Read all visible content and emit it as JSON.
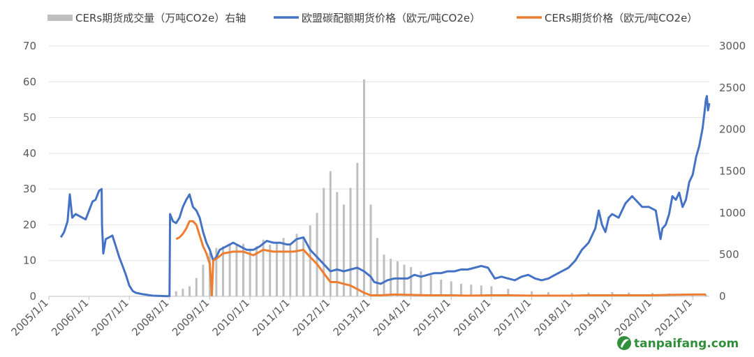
{
  "chart_data": {
    "type": "line",
    "x_is_time": true,
    "x_range": [
      "2005/1/1",
      "2021/6/1"
    ],
    "x_ticks": [
      "2005/1/1",
      "2006/1/1",
      "2007/1/1",
      "2008/1/1",
      "2009/1/1",
      "2010/1/1",
      "2011/1/1",
      "2012/1/1",
      "2013/1/1",
      "2014/1/1",
      "2015/1/1",
      "2016/1/1",
      "2017/1/1",
      "2018/1/1",
      "2019/1/1",
      "2020/1/1",
      "2021/1/1"
    ],
    "y_left": {
      "range": [
        0,
        70
      ],
      "ticks": [
        0,
        10,
        20,
        30,
        40,
        50,
        60,
        70
      ]
    },
    "y_right": {
      "range": [
        0,
        3000
      ],
      "ticks": [
        0,
        500,
        1000,
        1500,
        2000,
        2500,
        3000
      ]
    },
    "grid": "horizontal",
    "legend_position": "top",
    "series": [
      {
        "name": "CERs期货成交量（万吨CO2e）右轴",
        "kind": "bar",
        "axis": "right",
        "color": "#bfbfbf",
        "points": [
          [
            "2008/3/1",
            60
          ],
          [
            "2008/5/1",
            90
          ],
          [
            "2008/7/1",
            120
          ],
          [
            "2008/9/1",
            220
          ],
          [
            "2008/11/1",
            380
          ],
          [
            "2009/1/1",
            520
          ],
          [
            "2009/3/1",
            580
          ],
          [
            "2009/5/1",
            600
          ],
          [
            "2009/7/1",
            620
          ],
          [
            "2009/9/1",
            610
          ],
          [
            "2009/11/1",
            630
          ],
          [
            "2010/1/1",
            560
          ],
          [
            "2010/3/1",
            600
          ],
          [
            "2010/5/1",
            680
          ],
          [
            "2010/7/1",
            620
          ],
          [
            "2010/9/1",
            640
          ],
          [
            "2010/11/1",
            700
          ],
          [
            "2011/1/1",
            620
          ],
          [
            "2011/3/1",
            750
          ],
          [
            "2011/5/1",
            700
          ],
          [
            "2011/7/1",
            850
          ],
          [
            "2011/9/1",
            1000
          ],
          [
            "2011/11/1",
            1300
          ],
          [
            "2012/1/1",
            1500
          ],
          [
            "2012/3/1",
            1250
          ],
          [
            "2012/5/1",
            1100
          ],
          [
            "2012/7/1",
            1300
          ],
          [
            "2012/9/1",
            1600
          ],
          [
            "2012/11/1",
            2600
          ],
          [
            "2013/1/1",
            1100
          ],
          [
            "2013/3/1",
            700
          ],
          [
            "2013/5/1",
            500
          ],
          [
            "2013/7/1",
            450
          ],
          [
            "2013/9/1",
            420
          ],
          [
            "2013/11/1",
            380
          ],
          [
            "2014/1/1",
            350
          ],
          [
            "2014/4/1",
            300
          ],
          [
            "2014/7/1",
            250
          ],
          [
            "2014/10/1",
            200
          ],
          [
            "2015/1/1",
            180
          ],
          [
            "2015/4/1",
            150
          ],
          [
            "2015/7/1",
            140
          ],
          [
            "2015/10/1",
            130
          ],
          [
            "2016/1/1",
            120
          ],
          [
            "2016/6/1",
            90
          ],
          [
            "2017/1/1",
            60
          ],
          [
            "2017/6/1",
            50
          ],
          [
            "2018/1/1",
            40
          ],
          [
            "2018/6/1",
            45
          ],
          [
            "2019/1/1",
            50
          ],
          [
            "2019/6/1",
            45
          ],
          [
            "2020/1/1",
            40
          ],
          [
            "2020/6/1",
            35
          ],
          [
            "2021/1/1",
            30
          ],
          [
            "2021/5/1",
            25
          ]
        ]
      },
      {
        "name": "欧盟碳配额期货价格（欧元/吨CO2e）",
        "kind": "line",
        "axis": "left",
        "color": "#4472c4",
        "points": [
          [
            "2005/4/20",
            16.5
          ],
          [
            "2005/5/20",
            18
          ],
          [
            "2005/6/20",
            21
          ],
          [
            "2005/7/10",
            28.5
          ],
          [
            "2005/8/1",
            22
          ],
          [
            "2005/9/1",
            23
          ],
          [
            "2005/10/1",
            22.5
          ],
          [
            "2005/11/1",
            22
          ],
          [
            "2005/12/1",
            21.5
          ],
          [
            "2006/1/1",
            24
          ],
          [
            "2006/2/1",
            26.5
          ],
          [
            "2006/3/1",
            27
          ],
          [
            "2006/4/1",
            29.5
          ],
          [
            "2006/4/25",
            30
          ],
          [
            "2006/4/28",
            20
          ],
          [
            "2006/5/10",
            12
          ],
          [
            "2006/6/1",
            16
          ],
          [
            "2006/7/1",
            16.5
          ],
          [
            "2006/8/1",
            17
          ],
          [
            "2006/9/1",
            14
          ],
          [
            "2006/10/1",
            11
          ],
          [
            "2006/11/1",
            8.5
          ],
          [
            "2006/12/1",
            6
          ],
          [
            "2007/1/1",
            3
          ],
          [
            "2007/2/1",
            1.5
          ],
          [
            "2007/3/1",
            1
          ],
          [
            "2007/5/1",
            0.6
          ],
          [
            "2007/8/1",
            0.2
          ],
          [
            "2007/12/1",
            0.05
          ],
          [
            "2008/1/1",
            0.03
          ],
          [
            "2008/1/6",
            23
          ],
          [
            "2008/2/1",
            21
          ],
          [
            "2008/3/1",
            20.5
          ],
          [
            "2008/4/1",
            22
          ],
          [
            "2008/5/1",
            25
          ],
          [
            "2008/6/1",
            27
          ],
          [
            "2008/7/1",
            28.5
          ],
          [
            "2008/8/1",
            25
          ],
          [
            "2008/9/1",
            24
          ],
          [
            "2008/10/1",
            22
          ],
          [
            "2008/11/1",
            18
          ],
          [
            "2008/12/1",
            15
          ],
          [
            "2009/1/1",
            13
          ],
          [
            "2009/2/1",
            10
          ],
          [
            "2009/3/1",
            11
          ],
          [
            "2009/4/1",
            13
          ],
          [
            "2009/6/1",
            14
          ],
          [
            "2009/8/1",
            15
          ],
          [
            "2009/10/1",
            14
          ],
          [
            "2009/12/1",
            13
          ],
          [
            "2010/2/1",
            13
          ],
          [
            "2010/4/1",
            14
          ],
          [
            "2010/6/1",
            15.5
          ],
          [
            "2010/8/1",
            15
          ],
          [
            "2010/10/1",
            15
          ],
          [
            "2010/12/1",
            14.5
          ],
          [
            "2011/1/1",
            14.5
          ],
          [
            "2011/3/1",
            16
          ],
          [
            "2011/5/1",
            16.5
          ],
          [
            "2011/7/1",
            13
          ],
          [
            "2011/9/1",
            11
          ],
          [
            "2011/11/1",
            9
          ],
          [
            "2012/1/1",
            7
          ],
          [
            "2012/3/1",
            7.5
          ],
          [
            "2012/5/1",
            7
          ],
          [
            "2012/7/1",
            7.5
          ],
          [
            "2012/9/1",
            8
          ],
          [
            "2012/11/1",
            7
          ],
          [
            "2013/1/1",
            5.5
          ],
          [
            "2013/2/1",
            4
          ],
          [
            "2013/4/1",
            3.5
          ],
          [
            "2013/6/1",
            4.5
          ],
          [
            "2013/8/1",
            5
          ],
          [
            "2013/10/1",
            5
          ],
          [
            "2013/12/1",
            5
          ],
          [
            "2014/2/1",
            6
          ],
          [
            "2014/4/1",
            5.5
          ],
          [
            "2014/6/1",
            6
          ],
          [
            "2014/8/1",
            6.5
          ],
          [
            "2014/10/1",
            6.5
          ],
          [
            "2014/12/1",
            7
          ],
          [
            "2015/2/1",
            7
          ],
          [
            "2015/4/1",
            7.5
          ],
          [
            "2015/6/1",
            7.5
          ],
          [
            "2015/8/1",
            8
          ],
          [
            "2015/10/1",
            8.5
          ],
          [
            "2015/12/1",
            8
          ],
          [
            "2016/1/1",
            6.5
          ],
          [
            "2016/2/1",
            5
          ],
          [
            "2016/4/1",
            5.5
          ],
          [
            "2016/6/1",
            5
          ],
          [
            "2016/8/1",
            4.5
          ],
          [
            "2016/10/1",
            5.5
          ],
          [
            "2016/12/1",
            6
          ],
          [
            "2017/2/1",
            5
          ],
          [
            "2017/4/1",
            4.5
          ],
          [
            "2017/6/1",
            5
          ],
          [
            "2017/8/1",
            6
          ],
          [
            "2017/10/1",
            7
          ],
          [
            "2017/12/1",
            8
          ],
          [
            "2018/2/1",
            10
          ],
          [
            "2018/4/1",
            13
          ],
          [
            "2018/6/1",
            15
          ],
          [
            "2018/8/1",
            19
          ],
          [
            "2018/9/1",
            24
          ],
          [
            "2018/10/1",
            20
          ],
          [
            "2018/11/1",
            18
          ],
          [
            "2018/12/1",
            22
          ],
          [
            "2019/1/1",
            23
          ],
          [
            "2019/3/1",
            22
          ],
          [
            "2019/5/1",
            26
          ],
          [
            "2019/7/1",
            28
          ],
          [
            "2019/8/1",
            27
          ],
          [
            "2019/10/1",
            25
          ],
          [
            "2019/12/1",
            25
          ],
          [
            "2020/2/1",
            24
          ],
          [
            "2020/3/15",
            16
          ],
          [
            "2020/4/1",
            19
          ],
          [
            "2020/5/1",
            20
          ],
          [
            "2020/6/1",
            23
          ],
          [
            "2020/7/1",
            28
          ],
          [
            "2020/8/1",
            27
          ],
          [
            "2020/9/1",
            29
          ],
          [
            "2020/10/1",
            25
          ],
          [
            "2020/11/1",
            27
          ],
          [
            "2020/12/1",
            32
          ],
          [
            "2021/1/1",
            34
          ],
          [
            "2021/2/1",
            39
          ],
          [
            "2021/3/1",
            42
          ],
          [
            "2021/4/1",
            47
          ],
          [
            "2021/4/20",
            52
          ],
          [
            "2021/5/1",
            55
          ],
          [
            "2021/5/10",
            56
          ],
          [
            "2021/5/20",
            52
          ],
          [
            "2021/6/1",
            54
          ]
        ]
      },
      {
        "name": "CERs期货价格（欧元/吨CO2e）",
        "kind": "line",
        "axis": "left",
        "color": "#ed7d31",
        "points": [
          [
            "2008/3/1",
            16
          ],
          [
            "2008/4/1",
            16.5
          ],
          [
            "2008/5/1",
            17.5
          ],
          [
            "2008/6/1",
            19
          ],
          [
            "2008/7/1",
            21
          ],
          [
            "2008/8/1",
            21
          ],
          [
            "2008/9/1",
            20
          ],
          [
            "2008/10/1",
            17
          ],
          [
            "2008/11/1",
            14
          ],
          [
            "2008/12/1",
            12
          ],
          [
            "2009/1/1",
            9
          ],
          [
            "2009/1/20",
            0.3
          ],
          [
            "2009/2/1",
            10
          ],
          [
            "2009/3/1",
            10.5
          ],
          [
            "2009/5/1",
            12
          ],
          [
            "2009/8/1",
            12.5
          ],
          [
            "2009/11/1",
            12.5
          ],
          [
            "2010/2/1",
            11.5
          ],
          [
            "2010/5/1",
            13
          ],
          [
            "2010/8/1",
            12.5
          ],
          [
            "2010/11/1",
            12.5
          ],
          [
            "2011/2/1",
            12.5
          ],
          [
            "2011/5/1",
            13
          ],
          [
            "2011/7/1",
            11
          ],
          [
            "2011/9/1",
            9
          ],
          [
            "2011/11/1",
            6.5
          ],
          [
            "2012/1/1",
            4
          ],
          [
            "2012/3/1",
            4
          ],
          [
            "2012/5/1",
            3.5
          ],
          [
            "2012/7/1",
            3
          ],
          [
            "2012/9/1",
            2
          ],
          [
            "2012/11/1",
            1
          ],
          [
            "2013/1/1",
            0.3
          ],
          [
            "2013/4/1",
            0.3
          ],
          [
            "2013/8/1",
            0.5
          ],
          [
            "2014/1/1",
            0.4
          ],
          [
            "2014/6/1",
            0.3
          ],
          [
            "2015/1/1",
            0.3
          ],
          [
            "2015/6/1",
            0.2
          ],
          [
            "2016/1/1",
            0.3
          ],
          [
            "2016/6/1",
            0.3
          ],
          [
            "2017/1/1",
            0.2
          ],
          [
            "2017/6/1",
            0.2
          ],
          [
            "2018/1/1",
            0.2
          ],
          [
            "2018/6/1",
            0.3
          ],
          [
            "2019/1/1",
            0.3
          ],
          [
            "2019/6/1",
            0.3
          ],
          [
            "2020/1/1",
            0.3
          ],
          [
            "2020/6/1",
            0.4
          ],
          [
            "2021/1/1",
            0.5
          ],
          [
            "2021/5/1",
            0.5
          ]
        ]
      }
    ]
  },
  "watermark": {
    "text": "tanpaifang.com",
    "icon": "leaf-logo-icon",
    "color": "#2f8f3a"
  }
}
